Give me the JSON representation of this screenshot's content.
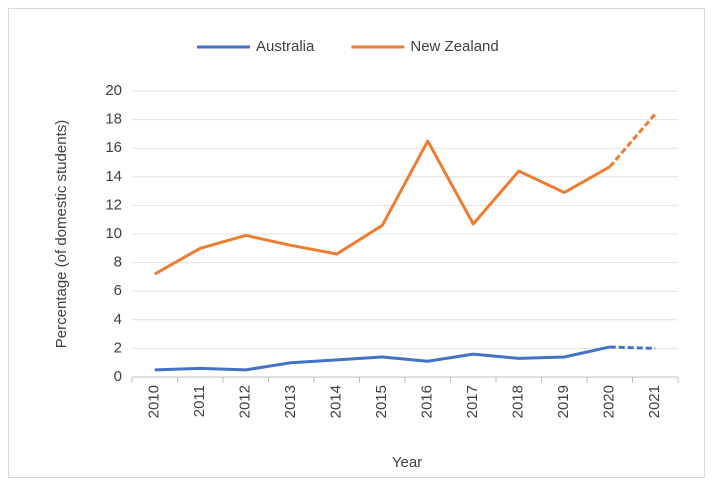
{
  "chart_data": {
    "type": "line",
    "categories": [
      "2010",
      "2011",
      "2012",
      "2013",
      "2014",
      "2015",
      "2016",
      "2017",
      "2018",
      "2019",
      "2020",
      "2021"
    ],
    "series": [
      {
        "name": "Australia",
        "color": "#4472c4",
        "values": [
          0.5,
          0.6,
          0.5,
          1.0,
          1.2,
          1.4,
          1.1,
          1.6,
          1.3,
          1.4,
          2.1,
          2.0
        ]
      },
      {
        "name": "New Zealand",
        "color": "#ed7d31",
        "values": [
          7.2,
          9.0,
          9.9,
          9.2,
          8.6,
          10.6,
          16.5,
          10.7,
          14.4,
          12.9,
          14.7,
          18.4
        ]
      }
    ],
    "dashed_after": "2020",
    "x_label": "Year",
    "y_label": "Percentage (of domestic students)",
    "ylim": [
      0,
      20
    ],
    "yticks": [
      0,
      2,
      4,
      6,
      8,
      10,
      12,
      14,
      16,
      18,
      20
    ],
    "grid": true,
    "legend": "top"
  }
}
